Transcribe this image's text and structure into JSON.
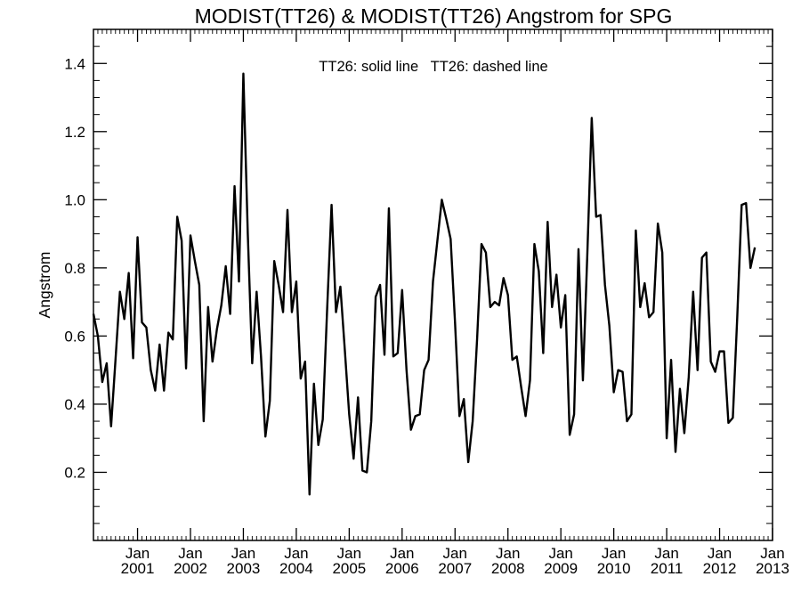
{
  "chart_data": {
    "type": "line",
    "title": "MODIST(TT26) & MODIST(TT26)  Angstrom for SPG",
    "annotation": "TT26: solid line   TT26: dashed line",
    "xlabel": "",
    "ylabel": "Angstrom",
    "x_tick_month_label": "Jan",
    "x_tick_years": [
      "2001",
      "2002",
      "2003",
      "2004",
      "2005",
      "2006",
      "2007",
      "2008",
      "2009",
      "2010",
      "2011",
      "2012",
      "2013"
    ],
    "y_ticks": [
      "0.2",
      "0.4",
      "0.6",
      "0.8",
      "1.0",
      "1.2",
      "1.4"
    ],
    "xlim": [
      "2000-03",
      "2013-01"
    ],
    "ylim": [
      0,
      1.5
    ],
    "grid": false,
    "colors": {
      "line": "#000000",
      "axis": "#000000",
      "background": "#ffffff"
    },
    "series": [
      {
        "style": "solid",
        "x_start": "2000-03",
        "x_step": "1 month",
        "values": [
          0.665,
          0.6,
          0.465,
          0.52,
          0.335,
          0.53,
          0.73,
          0.65,
          0.785,
          0.535,
          0.89,
          0.64,
          0.625,
          0.5,
          0.44,
          0.575,
          0.44,
          0.61,
          0.59,
          0.95,
          0.88,
          0.505,
          0.895,
          0.82,
          0.75,
          0.35,
          0.685,
          0.525,
          0.62,
          0.69,
          0.805,
          0.665,
          1.04,
          0.76,
          1.37,
          0.9,
          0.52,
          0.73,
          0.54,
          0.305,
          0.41,
          0.82,
          0.75,
          0.67,
          0.97,
          0.67,
          0.76,
          0.475,
          0.525,
          0.135,
          0.46,
          0.28,
          0.355,
          0.68,
          0.985,
          0.67,
          0.745,
          0.56,
          0.37,
          0.24,
          0.42,
          0.205,
          0.2,
          0.35,
          0.715,
          0.75,
          0.545,
          0.975,
          0.54,
          0.55,
          0.735,
          0.5,
          0.325,
          0.365,
          0.37,
          0.5,
          0.53,
          0.76,
          0.88,
          1.0,
          0.945,
          0.885,
          0.64,
          0.365,
          0.415,
          0.23,
          0.35,
          0.59,
          0.87,
          0.845,
          0.685,
          0.7,
          0.69,
          0.77,
          0.72,
          0.53,
          0.54,
          0.45,
          0.365,
          0.47,
          0.87,
          0.79,
          0.55,
          0.935,
          0.685,
          0.78,
          0.625,
          0.72,
          0.31,
          0.37,
          0.855,
          0.47,
          0.84,
          1.24,
          0.95,
          0.955,
          0.75,
          0.63,
          0.435,
          0.5,
          0.495,
          0.35,
          0.37,
          0.91,
          0.685,
          0.755,
          0.655,
          0.67,
          0.93,
          0.845,
          0.3,
          0.53,
          0.26,
          0.445,
          0.315,
          0.48,
          0.73,
          0.5,
          0.83,
          0.845,
          0.525,
          0.495,
          0.555,
          0.555,
          0.345,
          0.36,
          0.655,
          0.985,
          0.99,
          0.8,
          0.86
        ]
      }
    ]
  }
}
